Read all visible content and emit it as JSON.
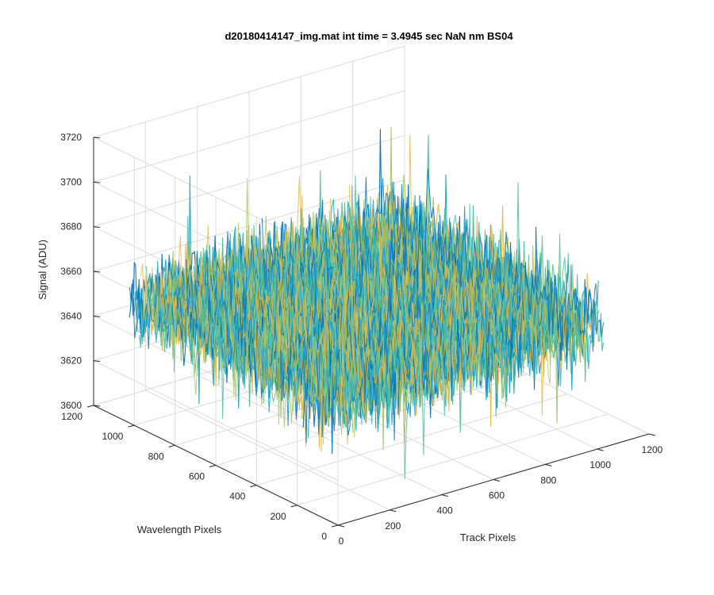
{
  "chart_data": {
    "type": "surface",
    "title": "d20180414147_img.mat int time = 3.4945 sec  NaN nm BS04",
    "xlabel": "Track Pixels",
    "ylabel": "Wavelength Pixels",
    "zlabel": "Signal (ADU)",
    "xlim": [
      0,
      1200
    ],
    "ylim": [
      0,
      1200
    ],
    "zlim": [
      3600,
      3720
    ],
    "x_ticks": [
      "0",
      "200",
      "400",
      "600",
      "800",
      "1000",
      "1200"
    ],
    "y_ticks": [
      "0",
      "200",
      "400",
      "600",
      "800",
      "1000",
      "1200"
    ],
    "z_ticks": [
      "3600",
      "3620",
      "3640",
      "3660",
      "3680",
      "3700",
      "3720"
    ],
    "x_extent": [
      0,
      1024
    ],
    "y_extent": [
      0,
      1024
    ],
    "signal_mean": 3655,
    "signal_min": 3610,
    "signal_max": 3712,
    "grid": true,
    "colormap": [
      "#0072bd",
      "#1fa3c8",
      "#4dbe9a",
      "#a8c66b",
      "#e6b84a"
    ]
  }
}
